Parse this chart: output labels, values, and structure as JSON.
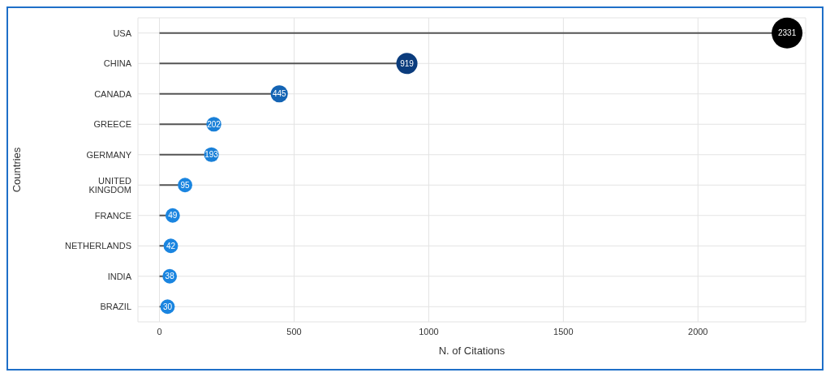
{
  "chart_data": {
    "type": "lollipop",
    "orientation": "horizontal",
    "xlabel": "N. of Citations",
    "ylabel": "Countries",
    "categories": [
      "USA",
      "CHINA",
      "CANADA",
      "GREECE",
      "GERMANY",
      "UNITED KINGDOM",
      "FRANCE",
      "NETHERLANDS",
      "INDIA",
      "BRAZIL"
    ],
    "values": [
      2331,
      919,
      445,
      202,
      193,
      95,
      49,
      42,
      38,
      30
    ],
    "sizes": [
      1,
      0.47,
      0.31,
      0.23,
      0.23,
      0.22,
      0.22,
      0.22,
      0.22,
      0.22
    ],
    "colors": [
      "#000000",
      "#0b3c7d",
      "#1464b4",
      "#1a80d8",
      "#1a80d8",
      "#1a85e0",
      "#1a85e0",
      "#1a85e0",
      "#1a85e0",
      "#1a85e0"
    ],
    "xlim": [
      -80,
      2400
    ],
    "xticks": [
      0,
      500,
      1000,
      1500,
      2000
    ],
    "grid": true,
    "data_labels": true
  }
}
